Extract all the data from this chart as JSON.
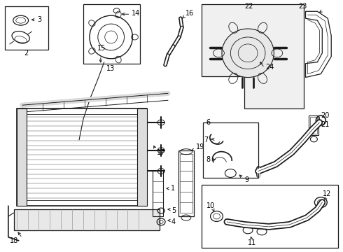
{
  "bg_color": "#ffffff",
  "line_color": "#1a1a1a",
  "box_color": "#1a1a1a",
  "label_color": "#000000",
  "figsize": [
    4.9,
    3.6
  ],
  "dpi": 100
}
